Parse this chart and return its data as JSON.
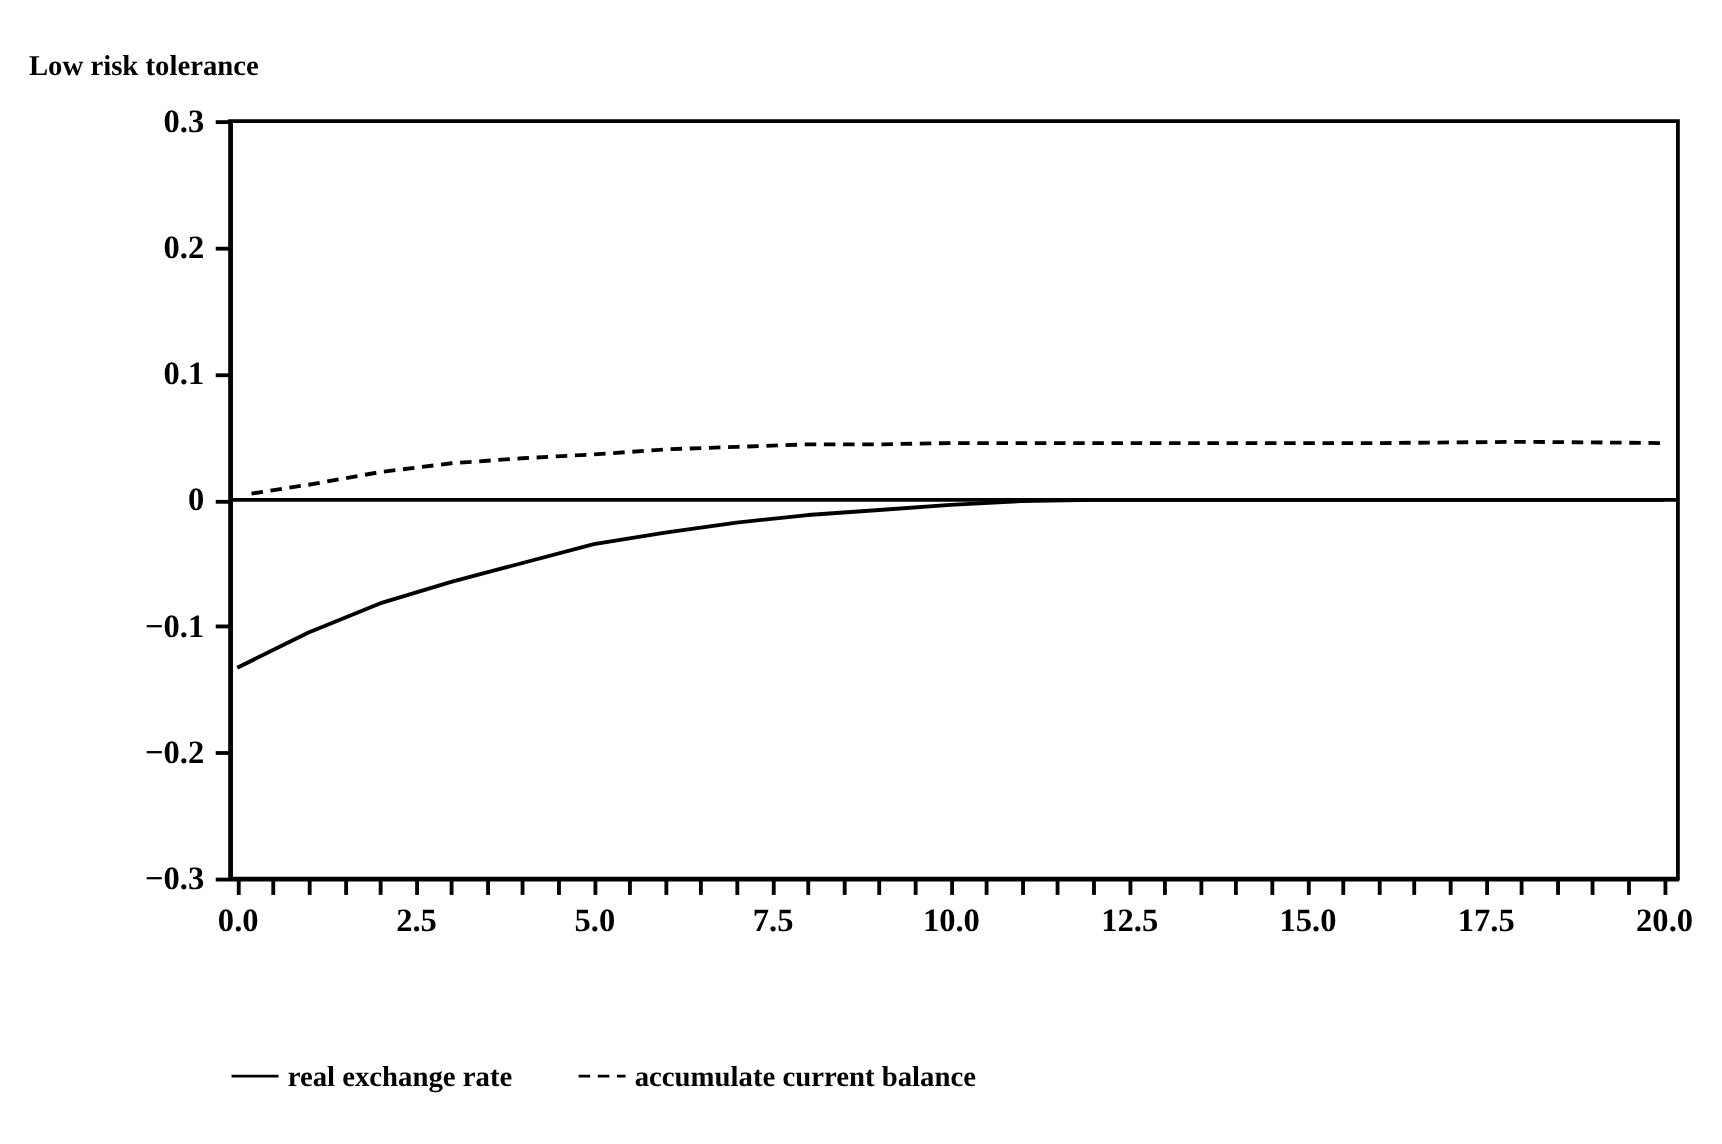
{
  "chart_data": {
    "type": "line",
    "title": "Low risk tolerance",
    "xlim": [
      -0.1,
      20.2
    ],
    "ylim": [
      -0.3,
      0.3
    ],
    "xticks": [
      {
        "value": 0,
        "label": "0.0"
      },
      {
        "value": 0.5,
        "label": null
      },
      {
        "value": 1,
        "label": null
      },
      {
        "value": 1.5,
        "label": null
      },
      {
        "value": 2,
        "label": null
      },
      {
        "value": 2.5,
        "label": "2.5"
      },
      {
        "value": 3,
        "label": null
      },
      {
        "value": 3.5,
        "label": null
      },
      {
        "value": 4,
        "label": null
      },
      {
        "value": 4.5,
        "label": null
      },
      {
        "value": 5,
        "label": "5.0"
      },
      {
        "value": 5.5,
        "label": null
      },
      {
        "value": 6,
        "label": null
      },
      {
        "value": 6.5,
        "label": null
      },
      {
        "value": 7,
        "label": null
      },
      {
        "value": 7.5,
        "label": "7.5"
      },
      {
        "value": 8,
        "label": null
      },
      {
        "value": 8.5,
        "label": null
      },
      {
        "value": 9,
        "label": null
      },
      {
        "value": 9.5,
        "label": null
      },
      {
        "value": 10,
        "label": "10.0"
      },
      {
        "value": 10.5,
        "label": null
      },
      {
        "value": 11,
        "label": null
      },
      {
        "value": 11.5,
        "label": null
      },
      {
        "value": 12,
        "label": null
      },
      {
        "value": 12.5,
        "label": "12.5"
      },
      {
        "value": 13,
        "label": null
      },
      {
        "value": 13.5,
        "label": null
      },
      {
        "value": 14,
        "label": null
      },
      {
        "value": 14.5,
        "label": null
      },
      {
        "value": 15,
        "label": "15.0"
      },
      {
        "value": 15.5,
        "label": null
      },
      {
        "value": 16,
        "label": null
      },
      {
        "value": 16.5,
        "label": null
      },
      {
        "value": 17,
        "label": null
      },
      {
        "value": 17.5,
        "label": "17.5"
      },
      {
        "value": 18,
        "label": null
      },
      {
        "value": 18.5,
        "label": null
      },
      {
        "value": 19,
        "label": null
      },
      {
        "value": 19.5,
        "label": null
      },
      {
        "value": 20,
        "label": "20.0"
      }
    ],
    "yticks": [
      {
        "value": -0.3,
        "label": "−0.3"
      },
      {
        "value": -0.2,
        "label": "−0.2"
      },
      {
        "value": -0.1,
        "label": "−0.1"
      },
      0,
      0.1,
      0.2,
      0.3
    ],
    "x": [
      0,
      1,
      2,
      3,
      4,
      5,
      6,
      7,
      8,
      9,
      10,
      11,
      12,
      14,
      16,
      18,
      20
    ],
    "series": [
      {
        "name": "real exchange rate",
        "color": "#000000",
        "line_style": "solid",
        "values": [
          -0.133,
          -0.105,
          -0.082,
          -0.065,
          -0.05,
          -0.035,
          -0.026,
          -0.018,
          -0.012,
          -0.008,
          -0.004,
          -0.001,
          0,
          0,
          0,
          0,
          0
        ]
      },
      {
        "name": "accumulate current balance",
        "color": "#000000",
        "line_style": "dashed",
        "x": [
          0.2,
          1,
          2,
          3,
          4,
          5,
          6,
          7,
          8,
          9,
          10,
          12,
          14,
          16,
          18,
          20
        ],
        "values": [
          0.005,
          0.012,
          0.022,
          0.029,
          0.033,
          0.036,
          0.04,
          0.042,
          0.044,
          0.044,
          0.045,
          0.045,
          0.045,
          0.045,
          0.046,
          0.045
        ]
      }
    ],
    "ref_lines": [
      {
        "axis": "y",
        "value": 0,
        "color": "#000000",
        "line_style": "solid"
      }
    ],
    "legend": "bottom",
    "grid": false,
    "marker": "none"
  }
}
